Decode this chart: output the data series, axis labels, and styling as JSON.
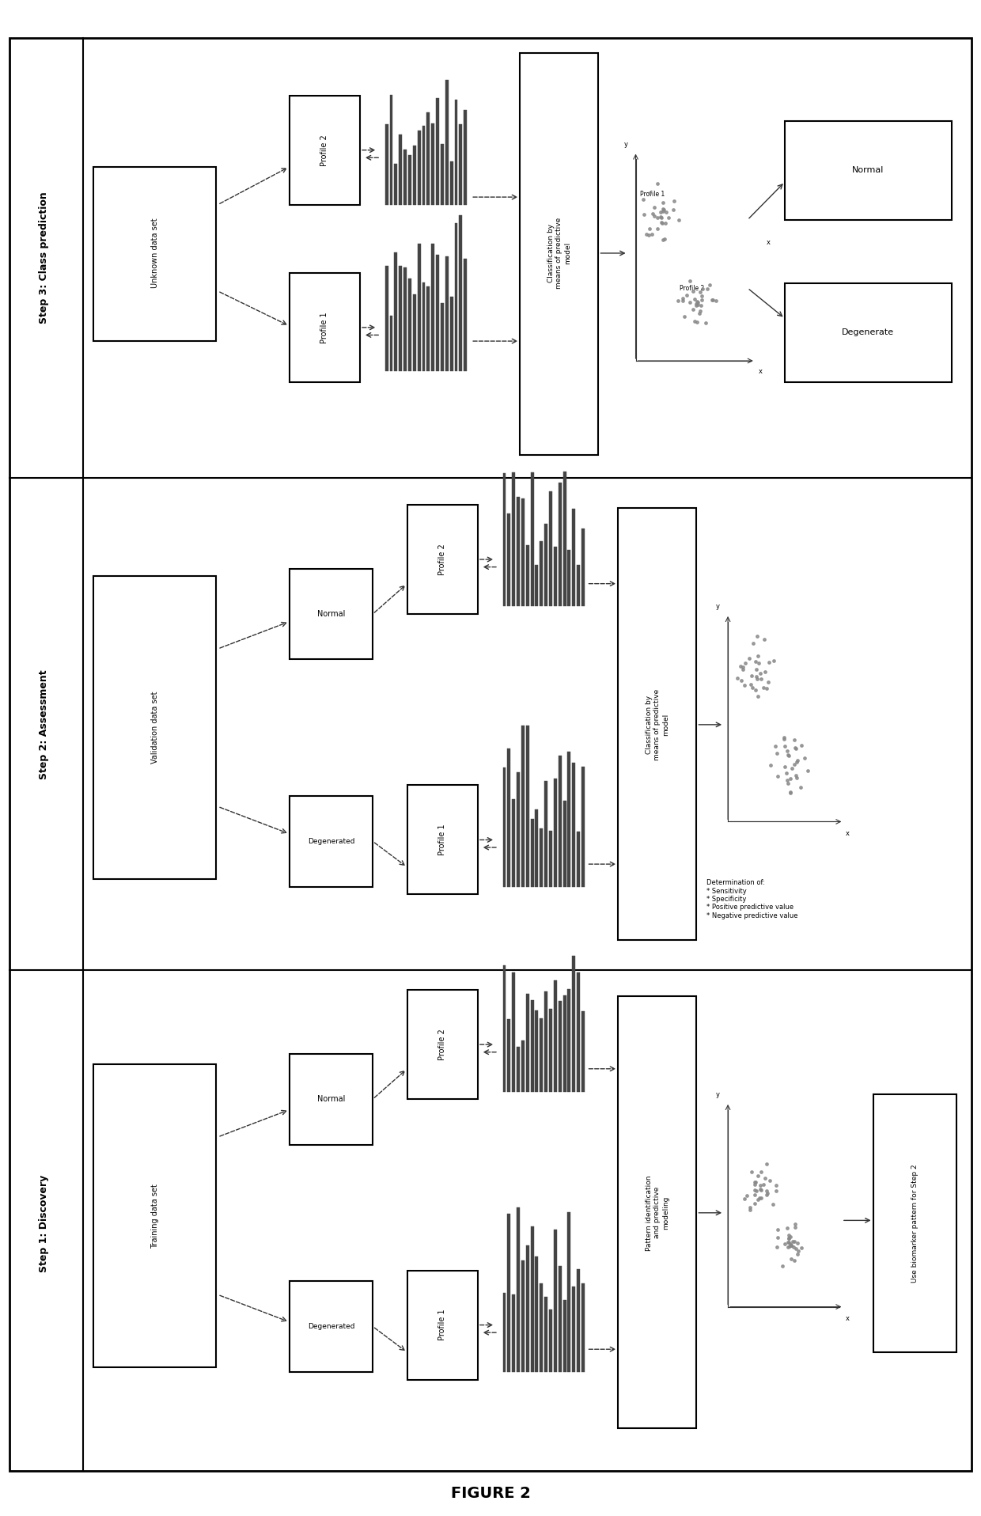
{
  "title": "FIGURE 2",
  "background": "#ffffff",
  "border_color": "#000000",
  "step_labels": [
    "Step 3: Class prediction",
    "Step 2: Assessment",
    "Step 1: Discovery"
  ],
  "sections": {
    "step3": {
      "label": "Step 3: Class prediction",
      "dataset_box": "Unknown data set",
      "profile1": "Profile 1",
      "profile2": "Profile 2",
      "process_box": "Classification by means of predictive model",
      "output1": "Degenerate",
      "output2": "Normal"
    },
    "step2": {
      "label": "Step 2: Assessment",
      "dataset_box": "Validation data set",
      "class1": "Normal",
      "class2": "Degenerated",
      "profile1": "Profile 1",
      "profile2": "Profile 2",
      "process_box": "Classification by means of predictive model",
      "metrics": "Determination of:\n* Sensitivity\n* Specificity\n* Positive predictive value\n* Negative predictive value"
    },
    "step1": {
      "label": "Step 1: Discovery",
      "dataset_box": "Training data set",
      "class1": "Normal",
      "class2": "Degenerated",
      "profile1": "Profile 1",
      "profile2": "Profile 2",
      "process_box": "Pattern identification and predictive modeling",
      "output": "Use biomarker pattern for Step 2"
    }
  },
  "arrow_color": "#333333",
  "box_facecolor": "#ffffff",
  "box_edgecolor": "#000000",
  "bar_color": "#444444",
  "scatter_color": "#888888"
}
